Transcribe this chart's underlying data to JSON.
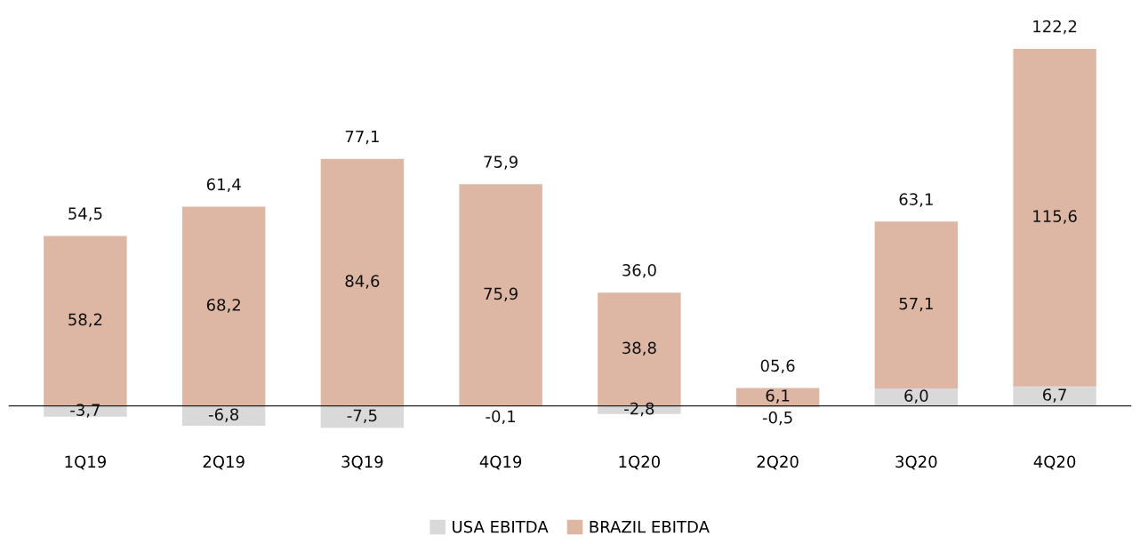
{
  "chart_data": {
    "type": "bar",
    "stacked": true,
    "categories": [
      "1Q19",
      "2Q19",
      "3Q19",
      "4Q19",
      "1Q20",
      "2Q20",
      "3Q20",
      "4Q20"
    ],
    "series": [
      {
        "name": "USA EBITDA",
        "color": "#d9d9d9",
        "values": [
          -3.7,
          -6.8,
          -7.5,
          -0.1,
          -2.8,
          -0.5,
          6.0,
          6.7
        ],
        "value_labels": [
          "-3,7",
          "-6,8",
          "-7,5",
          "-0,1",
          "-2,8",
          "-0,5",
          "6,0",
          "6,7"
        ]
      },
      {
        "name": "BRAZIL EBITDA",
        "color": "#deb6a4",
        "values": [
          58.2,
          68.2,
          84.6,
          75.9,
          38.8,
          6.1,
          57.1,
          115.6
        ],
        "value_labels": [
          "58,2",
          "68,2",
          "84,6",
          "75,9",
          "38,8",
          "6,1",
          "57,1",
          "115,6"
        ]
      }
    ],
    "totals": [
      "54,5",
      "61,4",
      "77,1",
      "75,9",
      "36,0",
      "05,6",
      "63,1",
      "122,2"
    ],
    "legend": "bottom",
    "grid": false
  }
}
